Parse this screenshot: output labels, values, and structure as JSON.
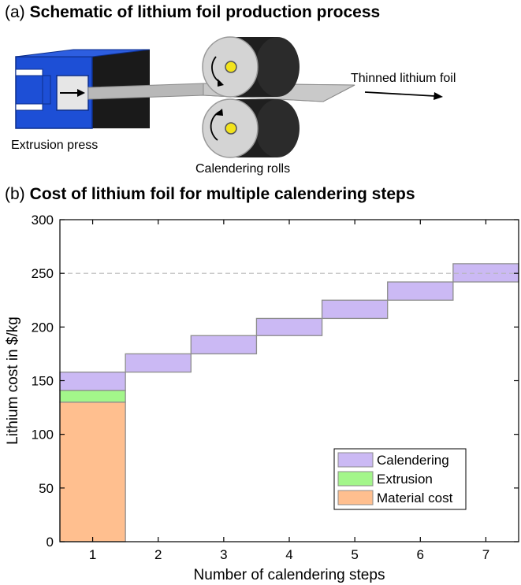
{
  "panel_a": {
    "tag": "(a)",
    "title": "Schematic of lithium foil production process",
    "labels": {
      "extrusion_press": "Extrusion press",
      "calendering_rolls": "Calendering rolls",
      "thinned_foil": "Thinned lithium foil"
    },
    "colors": {
      "press": "#1d4fd6",
      "press_dark": "#1a1a1a",
      "roll": "#2a2a2a",
      "roll_face": "#cfcfcf",
      "axle": "#f2e31b",
      "foil": "#b4b4b4"
    },
    "icons": [
      "extrusion-press-icon",
      "calendering-roll-icon",
      "direction-arrow-icon"
    ]
  },
  "panel_b": {
    "tag": "(b)",
    "title": "Cost of lithium foil for multiple calendering steps"
  },
  "chart_data": {
    "type": "bar",
    "title": "Cost of lithium foil for multiple calendering steps",
    "xlabel": "Number of calendering steps",
    "ylabel": "Lithium cost in $/kg",
    "categories": [
      "1",
      "2",
      "3",
      "4",
      "5",
      "6",
      "7"
    ],
    "xlim": [
      0.5,
      7.5
    ],
    "ylim": [
      0,
      300
    ],
    "yticks": [
      0,
      50,
      100,
      150,
      200,
      250,
      300
    ],
    "reference_line": {
      "y": 250,
      "style": "dashed"
    },
    "series": [
      {
        "name": "Material cost",
        "color": "#ffbf8f",
        "bars": [
          {
            "x": 1,
            "bottom": 0,
            "top": 130
          }
        ]
      },
      {
        "name": "Extrusion",
        "color": "#a3f68a",
        "bars": [
          {
            "x": 1,
            "bottom": 130,
            "top": 141
          }
        ]
      },
      {
        "name": "Calendering",
        "color": "#cbb9f4",
        "bars": [
          {
            "x": 1,
            "bottom": 141,
            "top": 158
          },
          {
            "x": 2,
            "bottom": 158,
            "top": 175
          },
          {
            "x": 3,
            "bottom": 175,
            "top": 192
          },
          {
            "x": 4,
            "bottom": 192,
            "top": 208
          },
          {
            "x": 5,
            "bottom": 208,
            "top": 225
          },
          {
            "x": 6,
            "bottom": 225,
            "top": 242
          },
          {
            "x": 7,
            "bottom": 242,
            "top": 259
          }
        ]
      }
    ],
    "legend": {
      "position": "bottom-right",
      "entries": [
        "Calendering",
        "Extrusion",
        "Material cost"
      ]
    }
  }
}
